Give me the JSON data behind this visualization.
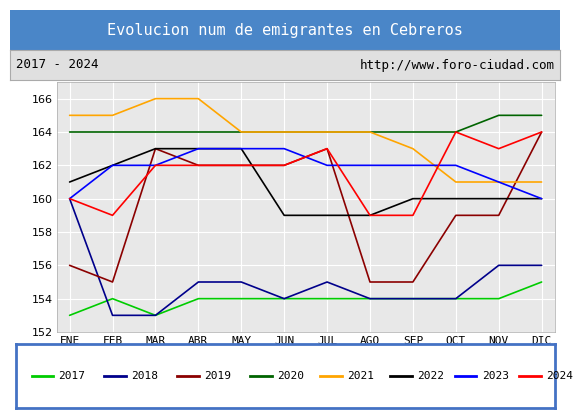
{
  "title": "Evolucion num de emigrantes en Cebreros",
  "subtitle_left": "2017 - 2024",
  "subtitle_right": "http://www.foro-ciudad.com",
  "x_labels": [
    "ENE",
    "FEB",
    "MAR",
    "ABR",
    "MAY",
    "JUN",
    "JUL",
    "AGO",
    "SEP",
    "OCT",
    "NOV",
    "DIC"
  ],
  "ylim": [
    152,
    167
  ],
  "yticks": [
    152,
    154,
    156,
    158,
    160,
    162,
    164,
    166
  ],
  "series": {
    "2017": {
      "color": "#00cc00",
      "values": [
        153,
        154,
        153,
        154,
        154,
        154,
        154,
        154,
        154,
        154,
        154,
        155
      ]
    },
    "2018": {
      "color": "#00008b",
      "values": [
        160,
        153,
        153,
        155,
        155,
        154,
        155,
        154,
        154,
        154,
        156,
        156
      ]
    },
    "2019": {
      "color": "#8b0000",
      "values": [
        156,
        155,
        163,
        162,
        162,
        162,
        163,
        155,
        155,
        159,
        159,
        164
      ]
    },
    "2020": {
      "color": "#006400",
      "values": [
        164,
        164,
        164,
        164,
        164,
        164,
        164,
        164,
        164,
        164,
        165,
        165
      ]
    },
    "2021": {
      "color": "#ffa500",
      "values": [
        165,
        165,
        166,
        166,
        164,
        164,
        164,
        164,
        163,
        161,
        161,
        161
      ]
    },
    "2022": {
      "color": "#000000",
      "values": [
        161,
        162,
        163,
        163,
        163,
        159,
        159,
        159,
        160,
        160,
        160,
        160
      ]
    },
    "2023": {
      "color": "#0000ff",
      "values": [
        160,
        162,
        162,
        163,
        163,
        163,
        162,
        162,
        162,
        162,
        161,
        160
      ]
    },
    "2024": {
      "color": "#ff0000",
      "values": [
        160,
        159,
        162,
        162,
        162,
        162,
        163,
        159,
        159,
        164,
        163,
        164
      ]
    }
  },
  "title_bg_color": "#4a86c8",
  "title_color": "#ffffff",
  "subtitle_bg_color": "#e0e0e0",
  "plot_bg_color": "#e8e8e8",
  "grid_color": "#ffffff",
  "legend_order": [
    "2017",
    "2018",
    "2019",
    "2020",
    "2021",
    "2022",
    "2023",
    "2024"
  ],
  "title_fontsize": 11,
  "subtitle_fontsize": 9,
  "tick_fontsize": 8
}
